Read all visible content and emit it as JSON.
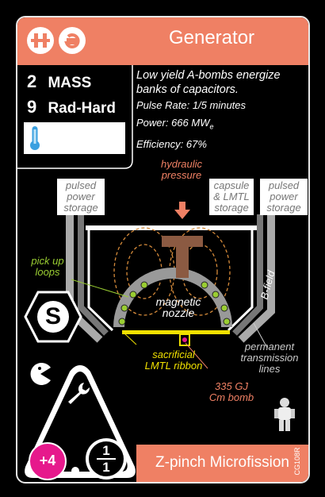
{
  "header": {
    "title": "Generator"
  },
  "stats": {
    "mass_value": "2",
    "mass_label": "MASS",
    "radhard_value": "9",
    "radhard_label": "Rad-Hard"
  },
  "description": {
    "line1": "Low yield A-bombs energize",
    "line2": "banks of capacitors.",
    "pulse": "Pulse Rate: 1/5 minutes",
    "power": "Power: 666 MW",
    "power_sub": "e",
    "efficiency": "Efficiency: 67%"
  },
  "diagram": {
    "hydraulic": [
      "hydraulic",
      "pressure"
    ],
    "pulsed_left": [
      "pulsed",
      "power",
      "storage"
    ],
    "pulsed_right": [
      "pulsed",
      "power",
      "storage"
    ],
    "capsule": [
      "capsule",
      "& LMTL",
      "storage"
    ],
    "pickup": [
      "pick up",
      "loops"
    ],
    "bfield": "B-field",
    "magnetic": [
      "magnetic",
      "nozzle"
    ],
    "sacrificial": [
      "sacrificial",
      "LMTL ribbon"
    ],
    "bomb": [
      "335 GJ",
      "Cm bomb"
    ],
    "transmission": [
      "permanent",
      "transmission",
      "lines"
    ]
  },
  "badges": {
    "s_letter": "S",
    "plus": "+4",
    "fraction_top": "1",
    "fraction_bottom": "1"
  },
  "footer": {
    "name": "Z-pinch Microfission",
    "code": "CG108R"
  },
  "colors": {
    "accent": "#ef8064",
    "yellow": "#f0e000",
    "pink": "#e6198c",
    "brown": "#8b5a42"
  },
  "icons": [
    "thruster-logo-icon",
    "e-logo-icon",
    "thermometer-icon",
    "wrench-icon",
    "pacman-icon",
    "astronaut-icon"
  ]
}
